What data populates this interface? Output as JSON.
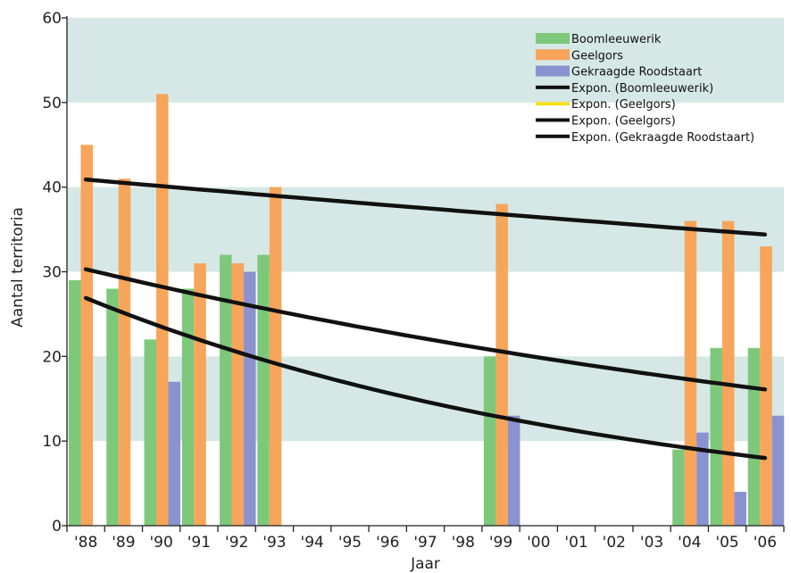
{
  "chart_data": {
    "type": "bar",
    "xlabel": "Jaar",
    "ylabel": "Aantal territoria",
    "ylim": [
      0,
      60
    ],
    "yticks": [
      "0",
      "10",
      "20",
      "30",
      "40",
      "50",
      "60"
    ],
    "grid": "alternating horizontal bands",
    "band_color": "#d5e8e6",
    "categories": [
      "'88",
      "'89",
      "'90",
      "'91",
      "'92",
      "'93",
      "'94",
      "'95",
      "'96",
      "'97",
      "'98",
      "'99",
      "'00",
      "'01",
      "'02",
      "'03",
      "'04",
      "'05",
      "'06"
    ],
    "series": [
      {
        "name": "Boomleeuwerik",
        "color": "#7dc87a",
        "values": [
          29,
          28,
          22,
          28,
          32,
          32,
          null,
          null,
          null,
          null,
          null,
          20,
          null,
          null,
          null,
          null,
          9,
          21,
          21
        ]
      },
      {
        "name": "Geelgors",
        "color": "#f7a55a",
        "values": [
          45,
          41,
          51,
          31,
          31,
          40,
          null,
          null,
          null,
          null,
          null,
          38,
          null,
          null,
          null,
          null,
          36,
          36,
          33
        ]
      },
      {
        "name": "Gekraagde Roodstaart",
        "color": "#8a92d0",
        "values": [
          null,
          null,
          17,
          null,
          30,
          null,
          null,
          null,
          null,
          null,
          null,
          13,
          null,
          null,
          null,
          null,
          11,
          4,
          13
        ]
      }
    ],
    "trendlines": [
      {
        "name": "Expon. (Boomleeuwerik)",
        "color": "#111111",
        "shown": false,
        "start": 30.3,
        "end": 16.1
      },
      {
        "name": "Expon. (Geelgors)",
        "color": "#f5e21b",
        "shown": false,
        "start": 40.9,
        "end": 34.4
      },
      {
        "name": "Expon. (Geelgors)",
        "color": "#111111",
        "shown": true,
        "start": 40.9,
        "end": 34.4
      },
      {
        "name": "Expon. (Gekraagde Roodstaart)",
        "color": "#111111",
        "shown": true,
        "start": 26.9,
        "end": 8.0
      },
      {
        "name": "",
        "color": "#111111",
        "shown": true,
        "start": 30.3,
        "end": 16.1
      }
    ],
    "legend_position": "top-right",
    "legend": [
      {
        "label": "Boomleeuwerik",
        "kind": "box",
        "color": "#7dc87a"
      },
      {
        "label": "Geelgors",
        "kind": "box",
        "color": "#f7a55a"
      },
      {
        "label": "Gekraagde Roodstaart",
        "kind": "box",
        "color": "#8a92d0"
      },
      {
        "label": "Expon. (Boomleeuwerik)",
        "kind": "line",
        "color": "#111111"
      },
      {
        "label": "Expon. (Geelgors)",
        "kind": "line",
        "color": "#f5e21b"
      },
      {
        "label": "Expon. (Geelgors)",
        "kind": "line",
        "color": "#111111"
      },
      {
        "label": "Expon. (Gekraagde Roodstaart)",
        "kind": "line",
        "color": "#111111"
      }
    ]
  }
}
